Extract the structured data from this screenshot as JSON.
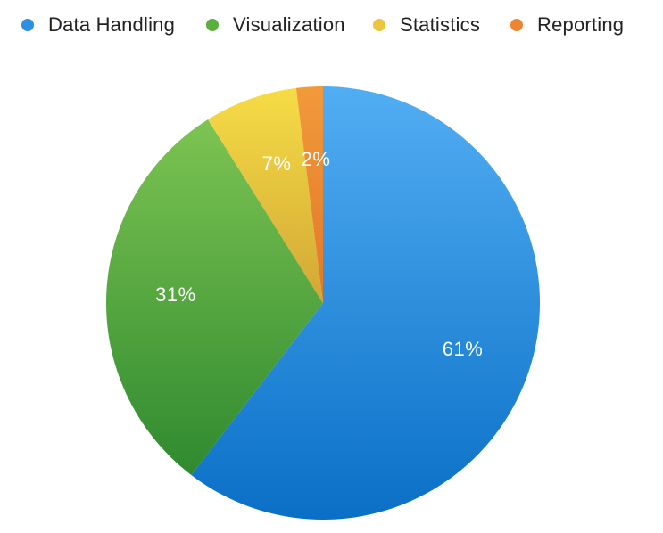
{
  "chart_data": {
    "type": "pie",
    "title": "",
    "legend_position": "top",
    "slices": [
      {
        "label": "Data Handling",
        "value": 61,
        "display": "61%",
        "color": "#2e8fe0"
      },
      {
        "label": "Visualization",
        "value": 31,
        "display": "31%",
        "color": "#5aae3f"
      },
      {
        "label": "Statistics",
        "value": 7,
        "display": "7%",
        "color": "#ecc53d"
      },
      {
        "label": "Reporting",
        "value": 2,
        "display": "2%",
        "color": "#ee8532"
      }
    ]
  }
}
